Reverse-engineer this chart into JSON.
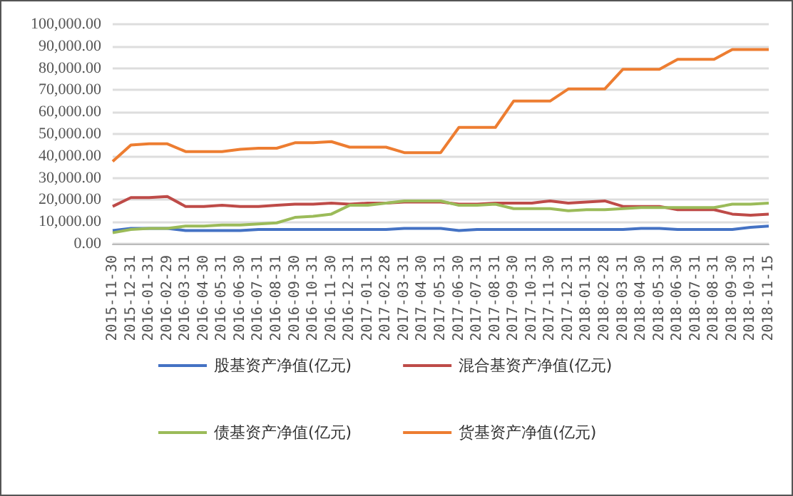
{
  "chart_data": {
    "type": "line",
    "categories": [
      "2015-11-30",
      "2015-12-31",
      "2016-01-31",
      "2016-02-29",
      "2016-03-31",
      "2016-04-30",
      "2016-05-31",
      "2016-06-30",
      "2016-07-31",
      "2016-08-31",
      "2016-09-30",
      "2016-10-31",
      "2016-11-30",
      "2016-12-31",
      "2017-01-31",
      "2017-02-28",
      "2017-03-31",
      "2017-04-30",
      "2017-05-31",
      "2017-06-30",
      "2017-07-31",
      "2017-08-31",
      "2017-09-30",
      "2017-10-31",
      "2017-11-30",
      "2017-12-31",
      "2018-01-31",
      "2018-02-28",
      "2018-03-31",
      "2018-04-30",
      "2018-05-31",
      "2018-06-30",
      "2018-07-31",
      "2018-08-31",
      "2018-09-30",
      "2018-10-31",
      "2018-11-15"
    ],
    "series": [
      {
        "name": "股基资产净值(亿元)",
        "color": "#4472c4",
        "values": [
          6000,
          7000,
          7000,
          7000,
          6000,
          6000,
          6000,
          6000,
          6500,
          6500,
          6500,
          6500,
          6500,
          6500,
          6500,
          6500,
          7000,
          7000,
          7000,
          6000,
          6500,
          6500,
          6500,
          6500,
          6500,
          6500,
          6500,
          6500,
          6500,
          7000,
          7000,
          6500,
          6500,
          6500,
          6500,
          7500,
          8000
        ]
      },
      {
        "name": "混合基资产净值(亿元)",
        "color": "#be4b48",
        "values": [
          17000,
          21000,
          21000,
          21500,
          17000,
          17000,
          17500,
          17000,
          17000,
          17500,
          18000,
          18000,
          18500,
          18000,
          18500,
          18500,
          19000,
          19000,
          19000,
          18000,
          18000,
          18500,
          18500,
          18500,
          19500,
          18500,
          19000,
          19500,
          17000,
          17000,
          17000,
          15500,
          15500,
          15500,
          13500,
          13000,
          13500
        ]
      },
      {
        "name": "债基资产净值(亿元)",
        "color": "#9bbb59",
        "values": [
          5000,
          6500,
          7000,
          7000,
          8000,
          8000,
          8500,
          8500,
          9000,
          9500,
          12000,
          12500,
          13500,
          17500,
          17500,
          18500,
          19500,
          19500,
          19500,
          17500,
          17500,
          18000,
          16000,
          16000,
          16000,
          15000,
          15500,
          15500,
          16000,
          16500,
          16500,
          16500,
          16500,
          16500,
          18000,
          18000,
          18500
        ]
      },
      {
        "name": "货基资产净值(亿元)",
        "color": "#ed7d31",
        "values": [
          37500,
          45000,
          45500,
          45500,
          42000,
          42000,
          42000,
          43000,
          43500,
          43500,
          46000,
          46000,
          46500,
          44000,
          44000,
          44000,
          41500,
          41500,
          41500,
          53000,
          53000,
          53000,
          65000,
          65000,
          65000,
          70500,
          70500,
          70500,
          79500,
          79500,
          79500,
          84000,
          84000,
          84000,
          88500,
          88500,
          88500
        ]
      }
    ],
    "ylim": [
      0,
      100000
    ],
    "yticks": [
      {
        "value": 0,
        "label": "0.00"
      },
      {
        "value": 10000,
        "label": "10,000.00"
      },
      {
        "value": 20000,
        "label": "20,000.00"
      },
      {
        "value": 30000,
        "label": "30,000.00"
      },
      {
        "value": 40000,
        "label": "40,000.00"
      },
      {
        "value": 50000,
        "label": "50,000.00"
      },
      {
        "value": 60000,
        "label": "60,000.00"
      },
      {
        "value": 70000,
        "label": "70,000.00"
      },
      {
        "value": 80000,
        "label": "80,000.00"
      },
      {
        "value": 90000,
        "label": "90,000.00"
      },
      {
        "value": 100000,
        "label": "100,000.00"
      }
    ],
    "grid": "y",
    "legend": "bottom",
    "marker": "none",
    "line_style": "solid"
  }
}
